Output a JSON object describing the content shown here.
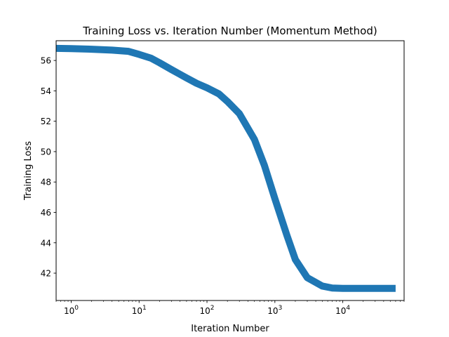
{
  "chart_data": {
    "type": "line",
    "title": "Training Loss vs. Iteration Number (Momentum Method)",
    "xlabel": "Iteration Number",
    "ylabel": "Training Loss",
    "xscale": "log",
    "xlim": [
      0.6,
      80000
    ],
    "ylim": [
      40.2,
      57.3
    ],
    "grid": false,
    "legend": "none",
    "x_ticks": [
      {
        "value": 1,
        "base": "10",
        "exp": "0"
      },
      {
        "value": 10,
        "base": "10",
        "exp": "1"
      },
      {
        "value": 100,
        "base": "10",
        "exp": "2"
      },
      {
        "value": 1000,
        "base": "10",
        "exp": "3"
      },
      {
        "value": 10000,
        "base": "10",
        "exp": "4"
      }
    ],
    "y_ticks": [
      42,
      44,
      46,
      48,
      50,
      52,
      54,
      56
    ],
    "series": [
      {
        "color": "#1f77b4",
        "x": [
          0.6,
          1,
          2,
          4,
          7,
          10,
          15,
          20,
          30,
          50,
          70,
          100,
          150,
          200,
          300,
          500,
          700,
          1000,
          1500,
          2000,
          3000,
          5000,
          7000,
          10000,
          15000,
          20000,
          30000,
          60000
        ],
        "y": [
          56.8,
          56.78,
          56.74,
          56.68,
          56.6,
          56.4,
          56.15,
          55.85,
          55.4,
          54.85,
          54.5,
          54.2,
          53.8,
          53.3,
          52.5,
          50.8,
          49.1,
          46.9,
          44.5,
          42.9,
          41.7,
          41.15,
          41.02,
          41.0,
          41.0,
          41.0,
          41.0,
          41.0
        ]
      }
    ]
  }
}
